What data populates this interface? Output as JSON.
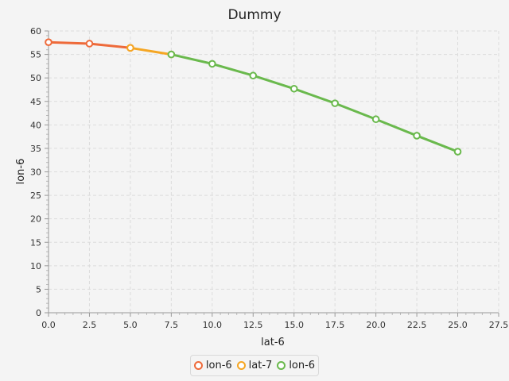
{
  "chart_data": {
    "type": "line",
    "title": "Dummy",
    "xlabel": "lat-6",
    "ylabel": "lon-6",
    "xlim": [
      0,
      27.5
    ],
    "ylim": [
      0,
      60
    ],
    "x_ticks": [
      "0.0",
      "2.5",
      "5.0",
      "7.5",
      "10.0",
      "12.5",
      "15.0",
      "17.5",
      "20.0",
      "22.5",
      "25.0",
      "27.5"
    ],
    "y_ticks": [
      "0",
      "5",
      "10",
      "15",
      "20",
      "25",
      "30",
      "35",
      "40",
      "45",
      "50",
      "55",
      "60"
    ],
    "grid": true,
    "legend_position": "bottom",
    "series": [
      {
        "name": "lon-6",
        "color": "#ee6a3a",
        "points": [
          [
            0,
            57.6
          ],
          [
            2.5,
            57.3
          ],
          [
            5,
            56.4
          ]
        ]
      },
      {
        "name": "lat-7",
        "color": "#f5a623",
        "points": [
          [
            5,
            56.4
          ],
          [
            7.5,
            55.0
          ]
        ]
      },
      {
        "name": "lon-6",
        "color": "#6ab94d",
        "points": [
          [
            7.5,
            55.0
          ],
          [
            10,
            53.0
          ],
          [
            12.5,
            50.5
          ],
          [
            15,
            47.7
          ],
          [
            17.5,
            44.6
          ],
          [
            20,
            41.2
          ],
          [
            22.5,
            37.7
          ],
          [
            25,
            34.3
          ]
        ]
      }
    ]
  }
}
